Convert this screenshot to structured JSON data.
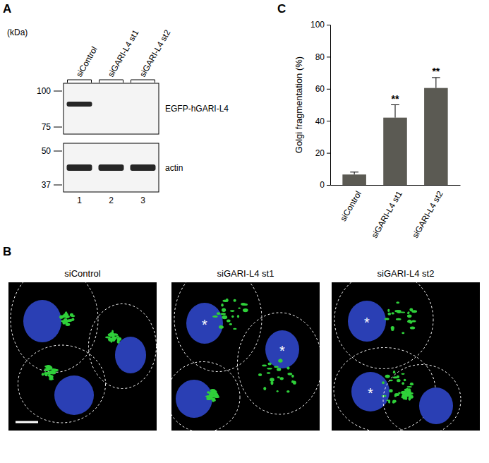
{
  "figure": {
    "panels": {
      "A": {
        "letter": "A",
        "unit": "(kDa)",
        "lanes": [
          "siControl",
          "siGARI-L4 st1",
          "siGARI-L4 st2"
        ],
        "lane_numbers": [
          1,
          2,
          3
        ],
        "blots": [
          {
            "label": "EGFP-hGARI-L4",
            "markers": [
              100,
              75
            ]
          },
          {
            "label": "actin",
            "markers": [
              50,
              37
            ]
          }
        ]
      },
      "B": {
        "letter": "B",
        "images": [
          {
            "title": "siControl"
          },
          {
            "title": "siGARI-L4 st1",
            "marks": [
              "*",
              "*"
            ]
          },
          {
            "title": "siGARI-L4 st2",
            "marks": [
              "*",
              "*"
            ]
          }
        ]
      },
      "C": {
        "letter": "C"
      }
    }
  },
  "chart_data": {
    "type": "bar",
    "y_label": "Golgi fragmentation (%)",
    "categories": [
      "siControl",
      "siGARI-L4 st1",
      "siGARI-L4 st2"
    ],
    "values": [
      6.5,
      42,
      60.5
    ],
    "errors": [
      1.5,
      8,
      6.5
    ],
    "color": "#5b5a53",
    "ylim": [
      0,
      100
    ],
    "yticks": [
      0,
      20,
      40,
      60,
      80,
      100
    ],
    "annotations": [
      {
        "category": "siGARI-L4 st1",
        "text": "**"
      },
      {
        "category": "siGARI-L4 st2",
        "text": "**"
      }
    ]
  }
}
